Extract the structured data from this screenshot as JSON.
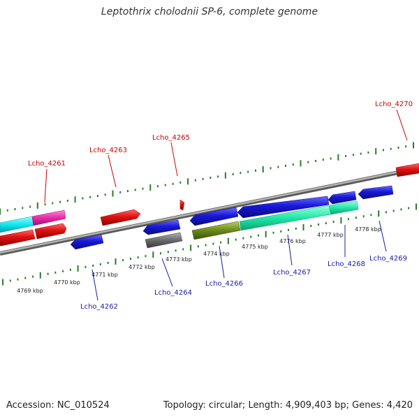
{
  "title": "Leptothrix cholodnii SP-6, complete genome",
  "footer": {
    "accession": "Accession: NC_010524",
    "summary": "Topology: circular; Length: 4,909,403 bp; Genes: 4,420"
  },
  "colors": {
    "backbone": "#8c8c8c",
    "tick_top": "#2a7a2a",
    "tick_bottom": "#2a7a2a",
    "label_top": "#cc0000",
    "label_bottom": "#1a1aaa",
    "red": "#e01010",
    "blue": "#1818d8",
    "cyan": "#10e8ee",
    "magenta": "#e82aa8",
    "gray": "#6a6a6a",
    "olive": "#6a8a1a",
    "mint": "#20e8a8"
  },
  "kbp_labels": [
    "4769 kbp",
    "4770 kbp",
    "4771 kbp",
    "4772 kbp",
    "4773 kbp",
    "4774 kbp",
    "4775 kbp",
    "4776 kbp",
    "4777 kbp",
    "4778 kbp"
  ],
  "gene_labels_top": [
    "Lcho_4261",
    "Lcho_4263",
    "Lcho_4265",
    "Lcho_4270"
  ],
  "gene_labels_bottom": [
    "Lcho_4262",
    "Lcho_4264",
    "Lcho_4266",
    "Lcho_4267",
    "Lcho_4268",
    "Lcho_4269"
  ]
}
